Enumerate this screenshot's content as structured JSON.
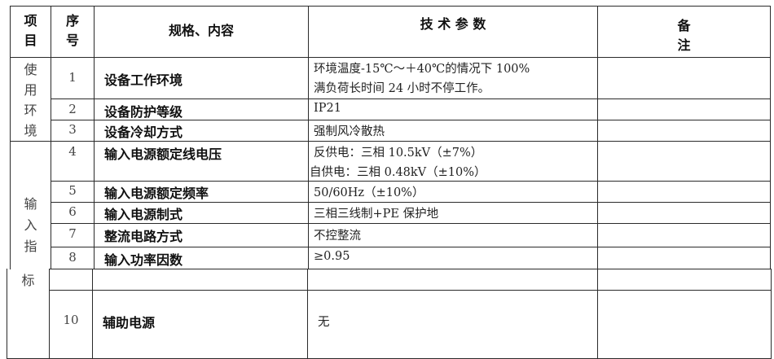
{
  "header": {
    "col_item": "项目",
    "col_item_l1": "项",
    "col_item_l2": "目",
    "col_no_l1": "序",
    "col_no_l2": "号",
    "col_spec": "规格、内容",
    "col_param": "技 术 参 数",
    "col_note_l1": "备",
    "col_note_l2": "注"
  },
  "groups": {
    "env": [
      "使",
      "用",
      "环",
      "境"
    ],
    "input_top": [
      "输",
      "入",
      "指"
    ],
    "input_bottom": "标"
  },
  "rows": [
    {
      "no": "1",
      "spec": "设备工作环境",
      "param": "环境温度-15℃～＋40℃的情况下 100%",
      "param2": "满负荷长时间 24 小时不停工作。"
    },
    {
      "no": "2",
      "spec": "设备防护等级",
      "param": "IP21"
    },
    {
      "no": "3",
      "spec": "设备冷却方式",
      "param": "强制风冷散热"
    },
    {
      "no": "4",
      "spec": "输入电源额定线电压",
      "param": "反供电：三相 10.5kV（±7%）",
      "param2": "自供电：三相 0.48kV（±10%）"
    },
    {
      "no": "5",
      "spec": "输入电源额定频率",
      "param": "50/60Hz（±10%）"
    },
    {
      "no": "6",
      "spec": "输入电源制式",
      "param": "三相三线制+PE 保护地"
    },
    {
      "no": "7",
      "spec": "整流电路方式",
      "param": "不控整流"
    },
    {
      "no": "8",
      "spec": "输入功率因数",
      "param": "≥0.95"
    },
    {
      "no": "",
      "spec": "",
      "param": ""
    },
    {
      "no": "10",
      "spec": "辅助电源",
      "param": "无"
    }
  ]
}
